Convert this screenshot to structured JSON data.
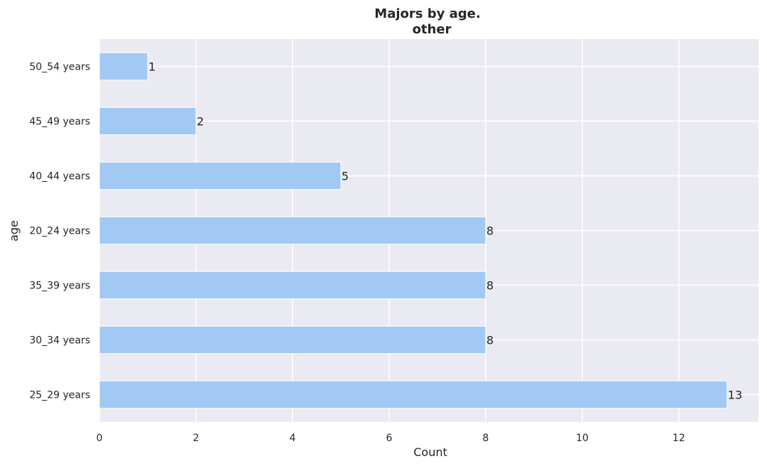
{
  "chart_data": {
    "type": "bar",
    "orientation": "horizontal",
    "title_line1": "Majors by age.",
    "title_line2": "other",
    "xlabel": "Count",
    "ylabel": "age",
    "categories": [
      "25_29 years",
      "30_34 years",
      "35_39 years",
      "20_24 years",
      "40_44 years",
      "45_49 years",
      "50_54 years"
    ],
    "values": [
      13,
      8,
      8,
      8,
      5,
      2,
      1
    ],
    "data_labels": [
      "13",
      "8",
      "8",
      "8",
      "5",
      "2",
      "1"
    ],
    "xlim": [
      0,
      13.65
    ],
    "xticks": [
      0,
      2,
      4,
      6,
      8,
      10,
      12
    ],
    "grid": true,
    "bar_color": "#a1c9f4",
    "background_color": "#eaeaf2",
    "grid_color": "#ffffff"
  }
}
